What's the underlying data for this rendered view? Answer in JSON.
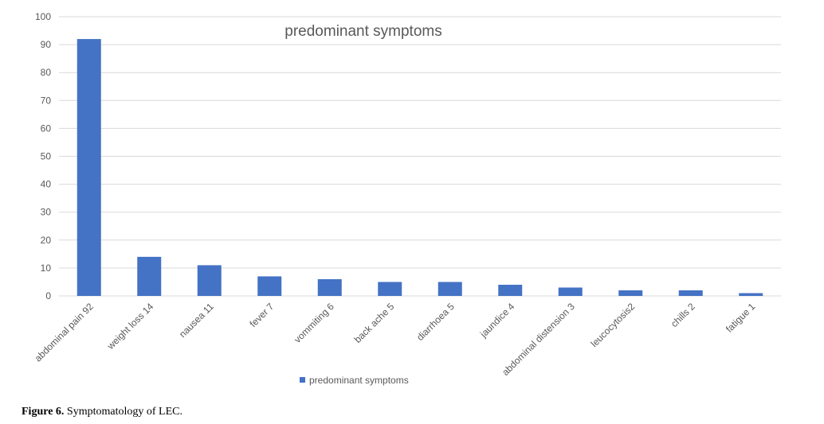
{
  "chart_data": {
    "type": "bar",
    "title": "predominant symptoms",
    "categories": [
      "abdominal pain  92",
      "weight loss 14",
      "nausea  11",
      "fever 7",
      "vommiting 6",
      "back ache 5",
      "diarrhoea 5",
      "jaundice 4",
      "abdominal distension 3",
      "leucocytosis2",
      "chills  2",
      "fatigue  1"
    ],
    "series": [
      {
        "name": "predominant symptoms",
        "color": "#4472c4",
        "values": [
          92,
          14,
          11,
          7,
          6,
          5,
          5,
          4,
          3,
          2,
          2,
          1
        ]
      }
    ],
    "ylim": [
      0,
      100
    ],
    "yticks": [
      0,
      10,
      20,
      30,
      40,
      50,
      60,
      70,
      80,
      90,
      100
    ],
    "grid": true,
    "legend": "bottom"
  },
  "caption": {
    "label": "Figure 6.",
    "text": "Symptomatology of LEC."
  }
}
